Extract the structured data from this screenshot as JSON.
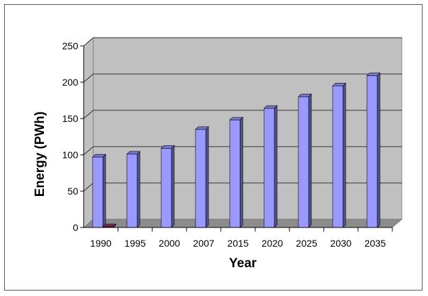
{
  "chart_data": {
    "type": "bar",
    "categories": [
      "1990",
      "1995",
      "2000",
      "2007",
      "2015",
      "2020",
      "2025",
      "2030",
      "2035"
    ],
    "series": [
      {
        "values": [
          97,
          101,
          109,
          135,
          148,
          164,
          180,
          195,
          209
        ],
        "color": "#9999ff"
      },
      {
        "values": [
          1,
          0,
          0,
          0,
          0,
          0,
          0,
          0,
          0
        ],
        "color": "#993366"
      }
    ],
    "xlabel": "Year",
    "ylabel": "Energy (PWh)",
    "ylim": [
      0,
      250
    ],
    "yticks": [
      "0",
      "50",
      "100",
      "150",
      "200",
      "250"
    ],
    "grid": true,
    "style": "3d-column",
    "colors": {
      "wall": "#c0c0c0",
      "floor": "#8c8c8c",
      "gridline": "#000000"
    }
  }
}
